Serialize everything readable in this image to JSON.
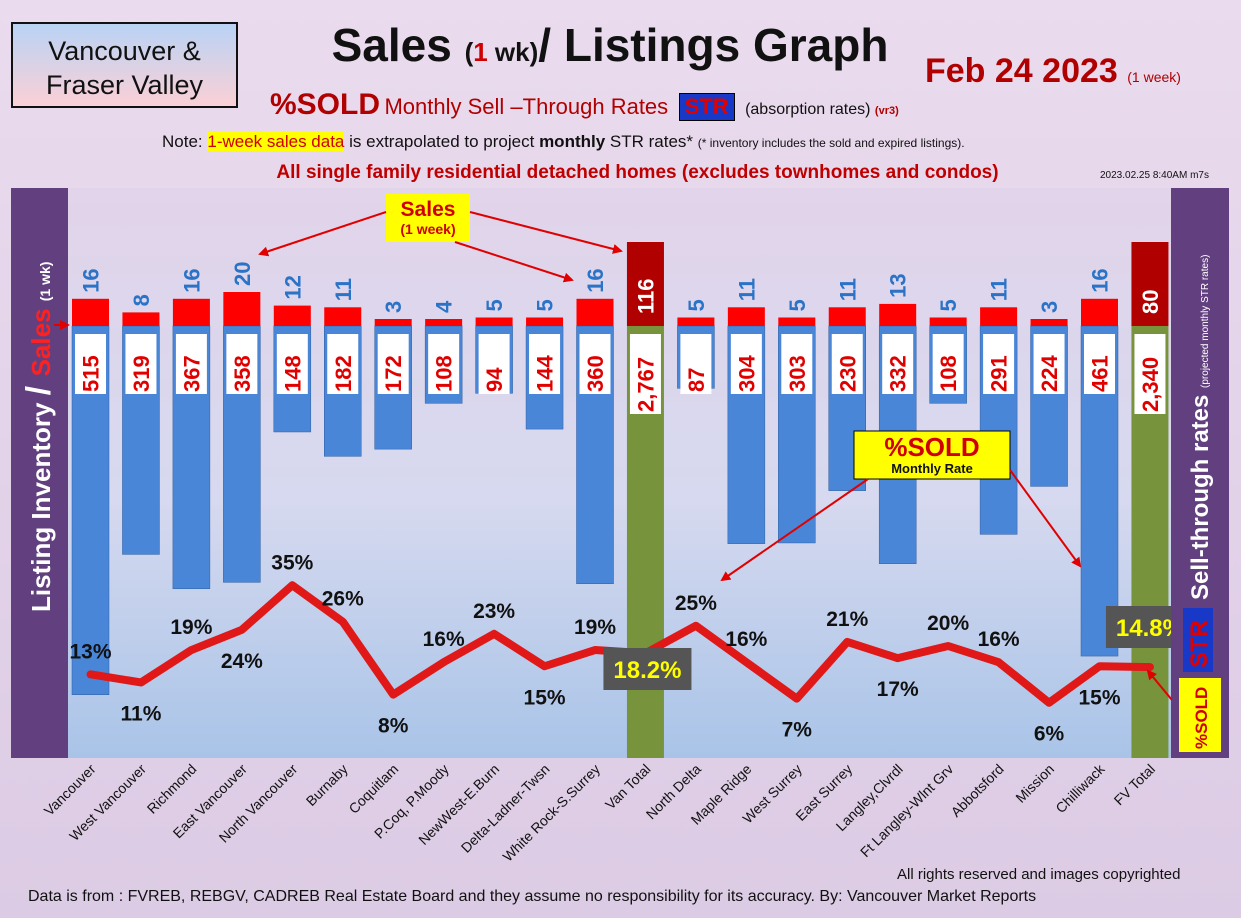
{
  "header": {
    "region_line1": "Vancouver &",
    "region_line2": "Fraser Valley",
    "title_a": "Sales ",
    "title_b": "(",
    "title_c": "1",
    "title_d": " wk)",
    "title_e": "/ Listings Graph",
    "date": "Feb 24  2023",
    "date_note": "(1 week)",
    "sub_sold": "%SOLD",
    "sub_rates": "Monthly Sell –Through Rates",
    "sub_str": "STR",
    "sub_abs": "(absorption rates)",
    "sub_version": "(vr3)",
    "note_a": "Note: ",
    "note_hl": "1-week sales data",
    "note_b": " is extrapolated to project ",
    "note_bold": "monthly",
    "note_c": " STR rates* ",
    "note_small": "(* inventory includes the sold and expired listings).",
    "headline": "All single family residential detached homes (excludes townhomes and condos)",
    "timestamp": "2023.02.25 8:40AM m7s"
  },
  "annotations": {
    "sales_callout_1": "Sales",
    "sales_callout_2": "(1 week)",
    "sold_callout_1": "%SOLD",
    "sold_callout_2": "Monthly Rate",
    "left_axis_main": "Listing Inventory ",
    "left_axis_slash": "/ ",
    "left_axis_sales": "Sales ",
    "left_axis_small": "(1 wk)",
    "right_axis_main": "Sell-through rates ",
    "right_axis_small": "(projected monthly STR rates)",
    "right_axis_str": "STR",
    "right_axis_sold": "%SOLD"
  },
  "footer": {
    "copyright": "All rights reserved and  images copyrighted",
    "source": "Data is from : FVREB, REBGV, CADREB Real Estate Board and they assume no responsibility for its accuracy. By: Vancouver Market Reports"
  },
  "colors": {
    "inventory": "#4a86d8",
    "total": "#77933c",
    "sales": "#ff0000",
    "sales_total": "#b00000",
    "line": "#e01818"
  },
  "chart_data": {
    "type": "bar",
    "categories": [
      "Vancouver",
      "West Vancouver",
      "Richmond",
      "East Vancouver",
      "North Vancouver",
      "Burnaby",
      "Coquitlam",
      "P.Coq, P.Moody",
      "NewWest-E.Burn",
      "Delta-Ladner-Twsn",
      "White Rock-S.Surrey",
      "Van Total",
      "North Delta",
      "Maple Ridge",
      "West Surrey",
      "East Surrey",
      "Langley,Clvrdl",
      "Ft Langley-Wlnt Grv",
      "Abbotsford",
      "Mission",
      "Chilliwack",
      "FV Total"
    ],
    "series": [
      {
        "name": "Listing Inventory",
        "values": [
          515,
          319,
          367,
          358,
          148,
          182,
          172,
          108,
          94,
          144,
          360,
          2767,
          87,
          304,
          303,
          230,
          332,
          108,
          291,
          224,
          461,
          2340
        ]
      },
      {
        "name": "Sales (1 wk)",
        "values": [
          16,
          8,
          16,
          20,
          12,
          11,
          3,
          4,
          5,
          5,
          16,
          116,
          5,
          11,
          5,
          11,
          13,
          5,
          11,
          3,
          16,
          80
        ]
      },
      {
        "name": "%SOLD",
        "values": [
          13,
          11,
          19,
          24,
          35,
          26,
          8,
          16,
          23,
          15,
          19,
          18.2,
          25,
          16,
          7,
          21,
          17,
          20,
          16,
          6,
          15,
          14.8
        ]
      }
    ],
    "labels": {
      "inventory": [
        "515",
        "319",
        "367",
        "358",
        "148",
        "182",
        "172",
        "108",
        "94",
        "144",
        "360",
        "2,767",
        "87",
        "304",
        "303",
        "230",
        "332",
        "108",
        "291",
        "224",
        "461",
        "2,340"
      ],
      "sales": [
        "16",
        "8",
        "16",
        "20",
        "12",
        "11",
        "3",
        "4",
        "5",
        "5",
        "16",
        "116",
        "5",
        "11",
        "5",
        "11",
        "13",
        "5",
        "11",
        "3",
        "16",
        "80"
      ],
      "sold": [
        "13%",
        "11%",
        "19%",
        "24%",
        "35%",
        "26%",
        "8%",
        "16%",
        "23%",
        "15%",
        "19%",
        "18.2%",
        "25%",
        "16%",
        "7%",
        "21%",
        "17%",
        "20%",
        "16%",
        "6%",
        "15%",
        "14.8%"
      ]
    },
    "total_indices": [
      11,
      21
    ],
    "sold_label_position": [
      "above",
      "below",
      "above",
      "below",
      "above",
      "above",
      "below",
      "above",
      "above",
      "below",
      "above",
      "boxed",
      "above",
      "above",
      "below",
      "above",
      "below",
      "above",
      "above",
      "below",
      "below",
      "boxed"
    ]
  }
}
